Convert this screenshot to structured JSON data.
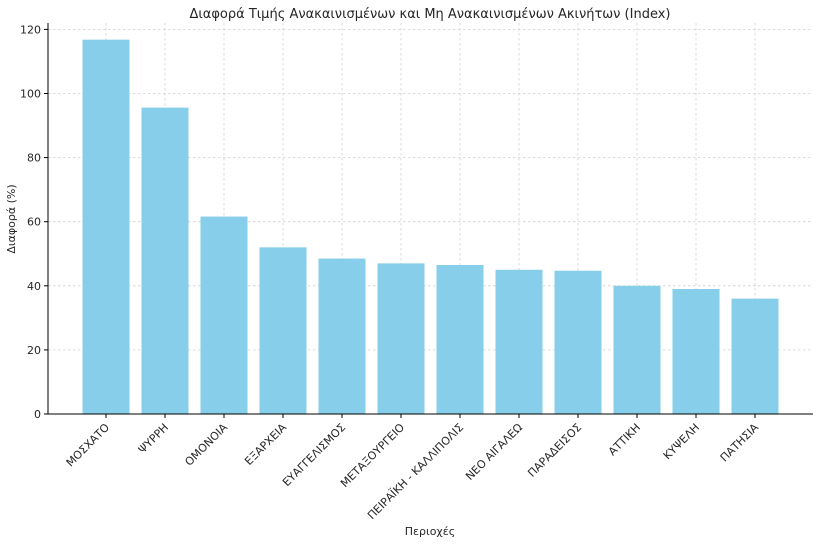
{
  "chart_data": {
    "type": "bar",
    "title": "Διαφορά Τιμής Ανακαινισμένων και Μη Ανακαινισμένων Ακινήτων (Index)",
    "xlabel": "Περιοχές",
    "ylabel": "Διαφορά (%)",
    "categories": [
      "ΜΟΣΧΑΤΟ",
      "ΨΥΡΡΗ",
      "ΟΜΟΝΟΙΑ",
      "ΕΞΑΡΧΕΙΑ",
      "ΕΥΑΓΓΕΛΙΣΜΟΣ",
      "ΜΕΤΑΞΟΥΡΓΕΙΟ",
      "ΠΕΙΡΑΪΚΗ - ΚΑΛΛΙΠΟΛΙΣ",
      "ΝΕΟ ΑΙΓΑΛΕΩ",
      "ΠΑΡΑΔΕΙΣΟΣ",
      "ΑΤΤΙΚΗ",
      "ΚΥΨΕΛΗ",
      "ΠΑΤΗΣΙΑ"
    ],
    "values": [
      116.8,
      95.6,
      61.6,
      52.0,
      48.5,
      47.0,
      46.5,
      45.0,
      44.7,
      40.0,
      39.0,
      36.0
    ],
    "ylim": [
      0,
      122
    ],
    "yticks": [
      0,
      20,
      40,
      60,
      80,
      100,
      120
    ],
    "grid": true,
    "colors": {
      "bar": "#87CEEB",
      "grid": "#d0d0d0",
      "axis": "#000000",
      "text": "#262626"
    }
  }
}
